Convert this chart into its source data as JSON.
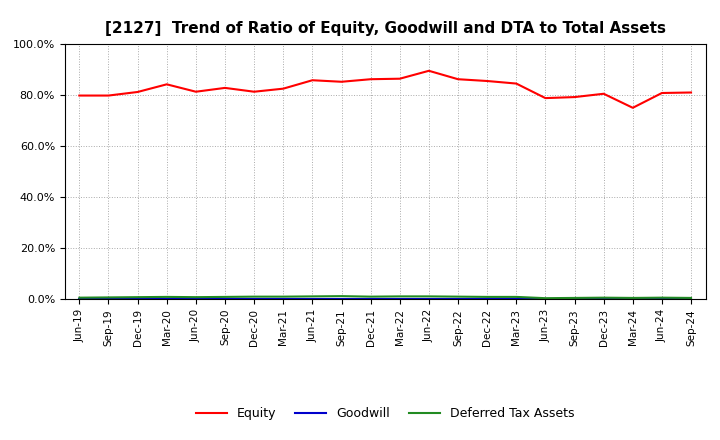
{
  "title": "[2127]  Trend of Ratio of Equity, Goodwill and DTA to Total Assets",
  "x_labels": [
    "Jun-19",
    "Sep-19",
    "Dec-19",
    "Mar-20",
    "Jun-20",
    "Sep-20",
    "Dec-20",
    "Mar-21",
    "Jun-21",
    "Sep-21",
    "Dec-21",
    "Mar-22",
    "Jun-22",
    "Sep-22",
    "Dec-22",
    "Mar-23",
    "Jun-23",
    "Sep-23",
    "Dec-23",
    "Mar-24",
    "Jun-24",
    "Sep-24"
  ],
  "equity": [
    79.8,
    79.8,
    81.2,
    84.2,
    81.3,
    82.8,
    81.3,
    82.5,
    85.8,
    85.2,
    86.2,
    86.4,
    89.5,
    86.2,
    85.5,
    84.5,
    78.8,
    79.2,
    80.5,
    75.0,
    80.8,
    81.0
  ],
  "goodwill": [
    0.05,
    0.05,
    0.05,
    0.05,
    0.05,
    0.05,
    0.05,
    0.05,
    0.05,
    0.05,
    0.05,
    0.05,
    0.05,
    0.05,
    0.05,
    0.05,
    0.05,
    0.05,
    0.05,
    0.05,
    0.05,
    0.05
  ],
  "dta": [
    0.6,
    0.7,
    0.8,
    0.9,
    0.8,
    0.9,
    1.0,
    1.0,
    1.1,
    1.2,
    1.0,
    1.1,
    1.1,
    1.0,
    0.9,
    0.9,
    0.4,
    0.5,
    0.6,
    0.5,
    0.6,
    0.5
  ],
  "equity_color": "#FF0000",
  "goodwill_color": "#0000CC",
  "dta_color": "#228B22",
  "ylim": [
    0,
    100
  ],
  "yticks": [
    0.0,
    20.0,
    40.0,
    60.0,
    80.0,
    100.0
  ],
  "background_color": "#FFFFFF",
  "grid_color": "#AAAAAA",
  "title_fontsize": 11,
  "legend_labels": [
    "Equity",
    "Goodwill",
    "Deferred Tax Assets"
  ]
}
